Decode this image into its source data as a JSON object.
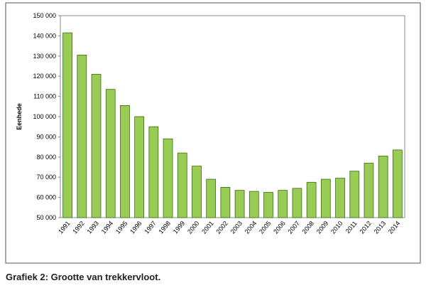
{
  "chart_data": {
    "type": "bar",
    "caption": "Grafiek 2: Grootte van trekkervloot.",
    "y_label": "Eenhede",
    "categories": [
      "1991",
      "1992",
      "1993",
      "1994",
      "1995",
      "1996",
      "1997",
      "1998",
      "1999",
      "2000",
      "2001",
      "2002",
      "2003",
      "2004",
      "2005",
      "2006",
      "2007",
      "2008",
      "2009",
      "2010",
      "2011",
      "2012",
      "2013",
      "2014"
    ],
    "values": [
      141500,
      130500,
      121000,
      113500,
      105500,
      100000,
      95000,
      89000,
      82000,
      75500,
      69000,
      65000,
      63500,
      63000,
      62500,
      63500,
      64500,
      67500,
      69000,
      69500,
      73000,
      77000,
      80500,
      83500
    ],
    "color": "#99cc55",
    "ylim": [
      50000,
      150000
    ],
    "yticks": [
      {
        "value": 50000,
        "label": "50 000"
      },
      {
        "value": 60000,
        "label": "60 000"
      },
      {
        "value": 70000,
        "label": "70 000"
      },
      {
        "value": 80000,
        "label": "80 000"
      },
      {
        "value": 90000,
        "label": "90 000"
      },
      {
        "value": 100000,
        "label": "100 000"
      },
      {
        "value": 110000,
        "label": "110 000"
      },
      {
        "value": 120000,
        "label": "120 000"
      },
      {
        "value": 130000,
        "label": "130 000"
      },
      {
        "value": 140000,
        "label": "140 000"
      },
      {
        "value": 150000,
        "label": "150 000"
      }
    ],
    "grid": false
  }
}
